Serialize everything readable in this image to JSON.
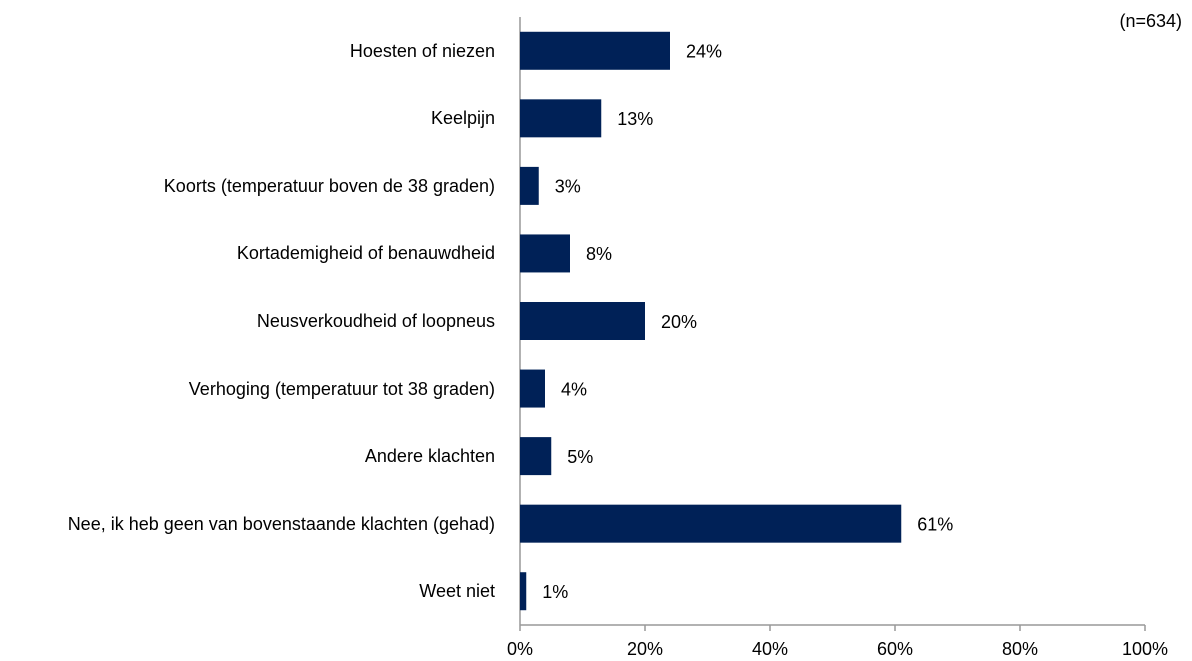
{
  "chart_data": {
    "type": "bar",
    "orientation": "horizontal",
    "annotation": "(n=634)",
    "categories": [
      "Hoesten of niezen",
      "Keelpijn",
      "Koorts (temperatuur boven de 38 graden)",
      "Kortademigheid of benauwdheid",
      "Neusverkoudheid of loopneus",
      "Verhoging (temperatuur tot 38 graden)",
      "Andere klachten",
      "Nee, ik heb geen van bovenstaande klachten (gehad)",
      "Weet niet"
    ],
    "values": [
      24,
      13,
      3,
      8,
      20,
      4,
      5,
      61,
      1
    ],
    "value_labels": [
      "24%",
      "13%",
      "3%",
      "8%",
      "20%",
      "4%",
      "5%",
      "61%",
      "1%"
    ],
    "color": "#002157",
    "xlim": [
      0,
      100
    ],
    "xticks": [
      {
        "value": 0,
        "label": "0%"
      },
      {
        "value": 20,
        "label": "20%"
      },
      {
        "value": 40,
        "label": "40%"
      },
      {
        "value": 60,
        "label": "60%"
      },
      {
        "value": 80,
        "label": "80%"
      },
      {
        "value": 100,
        "label": "100%"
      }
    ]
  }
}
